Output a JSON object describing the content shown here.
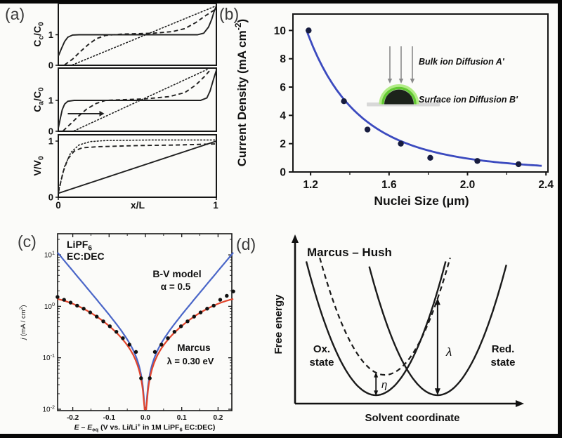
{
  "figure": {
    "panels": {
      "a": "(a)",
      "b": "(b)",
      "c": "(c)",
      "d": "(d)"
    }
  },
  "chart_data": {
    "panel_a": {
      "type": "line",
      "xlabel": "x/L",
      "x_range": [
        0,
        1
      ],
      "x_ticks": [
        {
          "v": 0,
          "t": "0"
        },
        {
          "v": 1,
          "t": "1"
        }
      ],
      "subplots": [
        {
          "ylabel_parts": [
            {
              "t": "C"
            },
            {
              "t": "c",
              "s": "sub"
            },
            {
              "t": "/C"
            },
            {
              "t": "0",
              "s": "sub"
            }
          ],
          "y_ticks": [
            {
              "v": 1,
              "t": "1"
            },
            {
              "v": 0,
              "t": "0"
            }
          ],
          "ylim": [
            0,
            2.02
          ],
          "curves": [
            {
              "name": "solid-profile",
              "style": "solid",
              "points": [
                [
                  0,
                  0.3
                ],
                [
                  0.02,
                  0.55
                ],
                [
                  0.04,
                  0.78
                ],
                [
                  0.06,
                  0.92
                ],
                [
                  0.09,
                  0.99
                ],
                [
                  0.13,
                  1
                ],
                [
                  0.88,
                  1
                ],
                [
                  0.92,
                  1.05
                ],
                [
                  0.95,
                  1.25
                ],
                [
                  0.97,
                  1.5
                ],
                [
                  0.985,
                  1.75
                ],
                [
                  1,
                  1.95
                ]
              ]
            },
            {
              "name": "dashed-profile",
              "style": "dashed",
              "points": [
                [
                  0.04,
                  0
                ],
                [
                  0.09,
                  0.2
                ],
                [
                  0.14,
                  0.45
                ],
                [
                  0.19,
                  0.68
                ],
                [
                  0.24,
                  0.87
                ],
                [
                  0.3,
                  0.98
                ],
                [
                  0.4,
                  1.02
                ],
                [
                  0.6,
                  1.05
                ],
                [
                  0.72,
                  1.1
                ],
                [
                  0.8,
                  1.2
                ],
                [
                  0.87,
                  1.4
                ],
                [
                  0.93,
                  1.62
                ],
                [
                  1,
                  1.85
                ]
              ]
            },
            {
              "name": "dotted-profile",
              "style": "dotted",
              "points": [
                [
                  0.09,
                  0
                ],
                [
                  1,
                  1.95
                ]
              ]
            }
          ]
        },
        {
          "ylabel_parts": [
            {
              "t": "C"
            },
            {
              "t": "a",
              "s": "sub"
            },
            {
              "t": "/C"
            },
            {
              "t": "0",
              "s": "sub"
            }
          ],
          "y_ticks": [
            {
              "v": 1,
              "t": "1"
            },
            {
              "v": 0,
              "t": "0"
            }
          ],
          "ylim": [
            0,
            2.05
          ],
          "arrow": {
            "from": [
              0.06,
              0.57
            ],
            "to": [
              0.26,
              0.57
            ]
          },
          "curves": [
            {
              "name": "solid-profile",
              "style": "solid",
              "points": [
                [
                  0,
                  0.1
                ],
                [
                  0.012,
                  0.4
                ],
                [
                  0.025,
                  0.7
                ],
                [
                  0.04,
                  0.88
                ],
                [
                  0.06,
                  0.97
                ],
                [
                  0.1,
                  1
                ],
                [
                  0.9,
                  1
                ],
                [
                  0.94,
                  1.08
                ],
                [
                  0.96,
                  1.3
                ],
                [
                  0.98,
                  1.65
                ],
                [
                  1,
                  1.98
                ]
              ]
            },
            {
              "name": "dashed-profile",
              "style": "dashed",
              "points": [
                [
                  0.03,
                  0
                ],
                [
                  0.08,
                  0.25
                ],
                [
                  0.13,
                  0.5
                ],
                [
                  0.18,
                  0.72
                ],
                [
                  0.24,
                  0.9
                ],
                [
                  0.3,
                  1
                ],
                [
                  0.55,
                  1.05
                ],
                [
                  0.7,
                  1.12
                ],
                [
                  0.8,
                  1.25
                ],
                [
                  0.87,
                  1.5
                ],
                [
                  0.93,
                  1.8
                ],
                [
                  0.96,
                  1.98
                ]
              ]
            },
            {
              "name": "dotted-profile",
              "style": "dotted",
              "points": [
                [
                  0.1,
                  0
                ],
                [
                  0.95,
                  2.02
                ]
              ]
            }
          ]
        },
        {
          "ylabel_parts": [
            {
              "t": "V/V"
            },
            {
              "t": "0",
              "s": "sub"
            }
          ],
          "y_ticks": [
            {
              "v": 1,
              "t": "1"
            },
            {
              "v": 0,
              "t": "0"
            }
          ],
          "ylim": [
            0,
            1.11
          ],
          "curves": [
            {
              "name": "solid-profile",
              "style": "solid",
              "points": [
                [
                  0,
                  0.07
                ],
                [
                  1,
                  1
                ]
              ]
            },
            {
              "name": "dashed-profile",
              "style": "dashed",
              "points": [
                [
                  0,
                  0.08
                ],
                [
                  0.03,
                  0.45
                ],
                [
                  0.06,
                  0.68
                ],
                [
                  0.1,
                  0.82
                ],
                [
                  0.15,
                  0.88
                ],
                [
                  0.25,
                  0.9
                ],
                [
                  0.5,
                  0.92
                ],
                [
                  0.75,
                  0.93
                ],
                [
                  1,
                  0.95
                ]
              ]
            },
            {
              "name": "dotted-profile",
              "style": "dotted",
              "points": [
                [
                  0,
                  0.1
                ],
                [
                  0.04,
                  0.55
                ],
                [
                  0.08,
                  0.8
                ],
                [
                  0.13,
                  0.93
                ],
                [
                  0.2,
                  0.99
                ],
                [
                  0.3,
                  1.01
                ],
                [
                  0.6,
                  1.02
                ],
                [
                  1,
                  1.02
                ]
              ]
            }
          ]
        }
      ]
    },
    "panel_b": {
      "type": "scatter",
      "xlabel": "Nuclei Size (μm)",
      "ylabel_parts": [
        {
          "t": "Current Density (mA cm"
        },
        {
          "t": "-2",
          "s": "sup"
        },
        {
          "t": ")"
        }
      ],
      "x_range": [
        1.11,
        2.41
      ],
      "y_range": [
        0,
        11.16
      ],
      "x_ticks": [
        {
          "v": 1.2,
          "t": "1.2"
        },
        {
          "v": 1.6,
          "t": "1.6"
        },
        {
          "v": 2.0,
          "t": "2.0"
        },
        {
          "v": 2.4,
          "t": "2.4"
        }
      ],
      "x_minor_ticks": [
        1.4,
        1.8,
        2.2
      ],
      "y_ticks": [
        {
          "v": 0,
          "t": "0"
        },
        {
          "v": 2,
          "t": "2"
        },
        {
          "v": 4,
          "t": "4"
        },
        {
          "v": 6,
          "t": "6"
        },
        {
          "v": 8,
          "t": "8"
        },
        {
          "v": 10,
          "t": "10"
        }
      ],
      "points": [
        [
          1.19,
          10
        ],
        [
          1.37,
          5
        ],
        [
          1.49,
          3
        ],
        [
          1.66,
          2
        ],
        [
          1.81,
          1
        ],
        [
          2.05,
          0.78
        ],
        [
          2.26,
          0.55
        ]
      ],
      "fit_curve": {
        "form": "power",
        "a": 20.9,
        "n": 4.46,
        "x_start": 1.178,
        "x_end": 2.39
      },
      "colors": {
        "curve": "#3b4abf",
        "points": "#171c3f"
      },
      "inset": {
        "bulk_label": "Bulk ion Diffusion A'",
        "surface_label": "Surface ion Diffusion B'",
        "arrow_count": 3,
        "colors": {
          "ring": "#62c832",
          "glow": "#b2ec86",
          "dome": "#1c231b",
          "substrate": "#d8d8d8",
          "arrows": "#8a8a8a",
          "text": "#4a4a4a"
        }
      }
    },
    "panel_c": {
      "type": "line",
      "corner_label_parts": [
        {
          "t": "LiPF"
        },
        {
          "t": "6",
          "s": "sub"
        }
      ],
      "corner_label_line2": "EC:DEC",
      "bv_label": "B-V model",
      "bv_alpha_label": "α = 0.5",
      "marcus_label": "Marcus",
      "marcus_lambda_label": "λ = 0.30 eV",
      "xlabel_parts": [
        {
          "t": "E – E",
          "i": true
        },
        {
          "t": "eq",
          "s": "sub"
        },
        {
          "t": " (V vs. Li/Li"
        },
        {
          "t": "+",
          "s": "sup"
        },
        {
          "t": " in 1M LiPF"
        },
        {
          "t": "6",
          "s": "sub"
        },
        {
          "t": " EC:DEC)"
        }
      ],
      "ylabel_parts": [
        {
          "t": "j",
          "i": true
        },
        {
          "t": " (mA / cm"
        },
        {
          "t": "2",
          "s": "sup"
        },
        {
          "t": ")"
        }
      ],
      "x_range": [
        -0.242,
        0.242
      ],
      "x_ticks": [
        {
          "v": -0.2,
          "t": "-0.2"
        },
        {
          "v": -0.1,
          "t": "-0.1"
        },
        {
          "v": 0,
          "t": "0.0"
        },
        {
          "v": 0.1,
          "t": "0.1"
        },
        {
          "v": 0.2,
          "t": "0.2"
        }
      ],
      "x_minor_ticks": [
        -0.15,
        -0.05,
        0.05,
        0.15
      ],
      "y_ticks": [
        {
          "exp": "1"
        },
        {
          "exp": "0"
        },
        {
          "exp": "-1"
        },
        {
          "exp": "-2"
        }
      ],
      "y_log_range": [
        -2,
        1.41
      ],
      "bv_model": {
        "j0": 0.1,
        "alpha": 0.5
      },
      "marcus_model": {
        "prefactor": 1.55,
        "lambda_eV": 0.3,
        "kT_eV": 0.0257
      },
      "data_points": [
        [
          -0.242,
          1.52
        ],
        [
          -0.224,
          1.34
        ],
        [
          -0.206,
          1.18
        ],
        [
          -0.188,
          1.03
        ],
        [
          -0.17,
          0.9
        ],
        [
          -0.152,
          0.76
        ],
        [
          -0.134,
          0.63
        ],
        [
          -0.116,
          0.51
        ],
        [
          -0.098,
          0.41
        ],
        [
          -0.08,
          0.32
        ],
        [
          -0.062,
          0.24
        ],
        [
          -0.044,
          0.18
        ],
        [
          -0.026,
          0.13
        ],
        [
          -0.012,
          0.04
        ],
        [
          0.012,
          0.04
        ],
        [
          0.026,
          0.13
        ],
        [
          0.044,
          0.18
        ],
        [
          0.062,
          0.24
        ],
        [
          0.08,
          0.32
        ],
        [
          0.098,
          0.41
        ],
        [
          0.116,
          0.51
        ],
        [
          0.134,
          0.63
        ],
        [
          0.152,
          0.76
        ],
        [
          0.17,
          0.9
        ],
        [
          0.188,
          1.03
        ],
        [
          0.206,
          1.34
        ],
        [
          0.224,
          1.6
        ],
        [
          0.242,
          1.95
        ]
      ],
      "colors": {
        "bv": "#4a66c8",
        "marcus": "#e2452c",
        "dots": "#101010",
        "text_blue": "#3a55c0",
        "text_red": "#e2452c"
      }
    },
    "panel_d": {
      "type": "diagram",
      "title": "Marcus – Hush",
      "ylabel": "Free energy",
      "xlabel": "Solvent coordinate",
      "ox_label_line1": "Ox.",
      "ox_label_line2": "state",
      "red_label_line1": "Red.",
      "red_label_line2": "state",
      "lambda_label": "λ",
      "eta_label": "η",
      "parabolas": [
        {
          "name": "ox-state-parabola",
          "style": "solid",
          "min": [
            0.36,
            0.051
          ],
          "k": 8.44,
          "span": [
            0.05,
            0.67
          ]
        },
        {
          "name": "shifted-state-parabola",
          "style": "dashed",
          "min": [
            0.4,
            0.174
          ],
          "k": 8.44,
          "span": [
            0.11,
            0.69
          ]
        },
        {
          "name": "red-state-parabola",
          "style": "solid",
          "min": [
            0.634,
            0.051
          ],
          "k": 8.44,
          "span": [
            0.33,
            0.94
          ]
        }
      ],
      "lambda_arrow": {
        "x": 0.634,
        "y1": 0.055,
        "y2": 0.636
      },
      "eta_arrow": {
        "x": 0.36,
        "y1": 0.051,
        "y2": 0.187
      }
    }
  }
}
